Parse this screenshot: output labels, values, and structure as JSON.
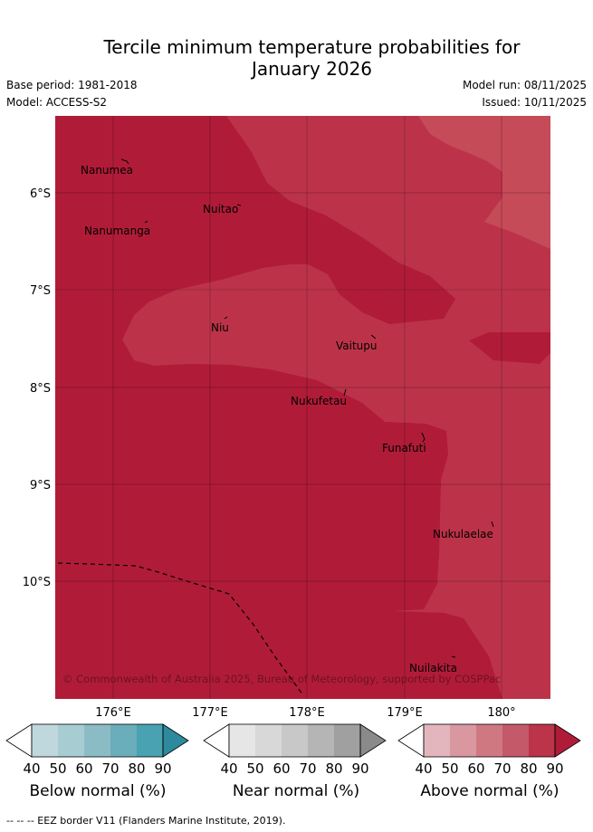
{
  "header": {
    "title_line1": "Tercile minimum temperature probabilities for",
    "title_line2": "January 2026",
    "base_period": "Base period: 1981-2018",
    "model": "Model: ACCESS-S2",
    "model_run": "Model run: 08/11/2025",
    "issued": "Issued: 10/11/2025"
  },
  "map": {
    "lat_labels": [
      "6°S",
      "7°S",
      "8°S",
      "9°S",
      "10°S"
    ],
    "lon_labels": [
      "176°E",
      "177°E",
      "178°E",
      "179°E",
      "180°"
    ],
    "places": [
      "Nanumea",
      "Nuitao",
      "Nanumanga",
      "Niu",
      "Vaitupu",
      "Nukufetau",
      "Funafuti",
      "Nukulaelae",
      "Nuilakita"
    ],
    "copyright": "© Commonwealth of Australia 2025, Bureau of Meteorology, supported by COSPPac",
    "colors": {
      "above_90": "#b01c38",
      "above_80": "#bc3349",
      "above_70": "#c54b59"
    }
  },
  "legend": {
    "ticks": [
      "40",
      "50",
      "60",
      "70",
      "80",
      "90"
    ],
    "below": {
      "label": "Below normal (%)",
      "colors": [
        "#ffffff",
        "#bfd8de",
        "#a7cdd3",
        "#8bbcc6",
        "#6aadbb",
        "#48a2b1",
        "#2d8a9c"
      ]
    },
    "near": {
      "label": "Near normal (%)",
      "colors": [
        "#ffffff",
        "#e6e6e6",
        "#d8d8d8",
        "#c8c8c8",
        "#b5b5b5",
        "#a0a0a0",
        "#8a8a8a"
      ]
    },
    "above": {
      "label": "Above normal (%)",
      "colors": [
        "#ffffff",
        "#e3b6bd",
        "#d9979f",
        "#cf7882",
        "#c4596a",
        "#bb3449",
        "#b01c38"
      ]
    }
  },
  "footer": "--  --  -- EEZ border V11 (Flanders Marine Institute, 2019)."
}
